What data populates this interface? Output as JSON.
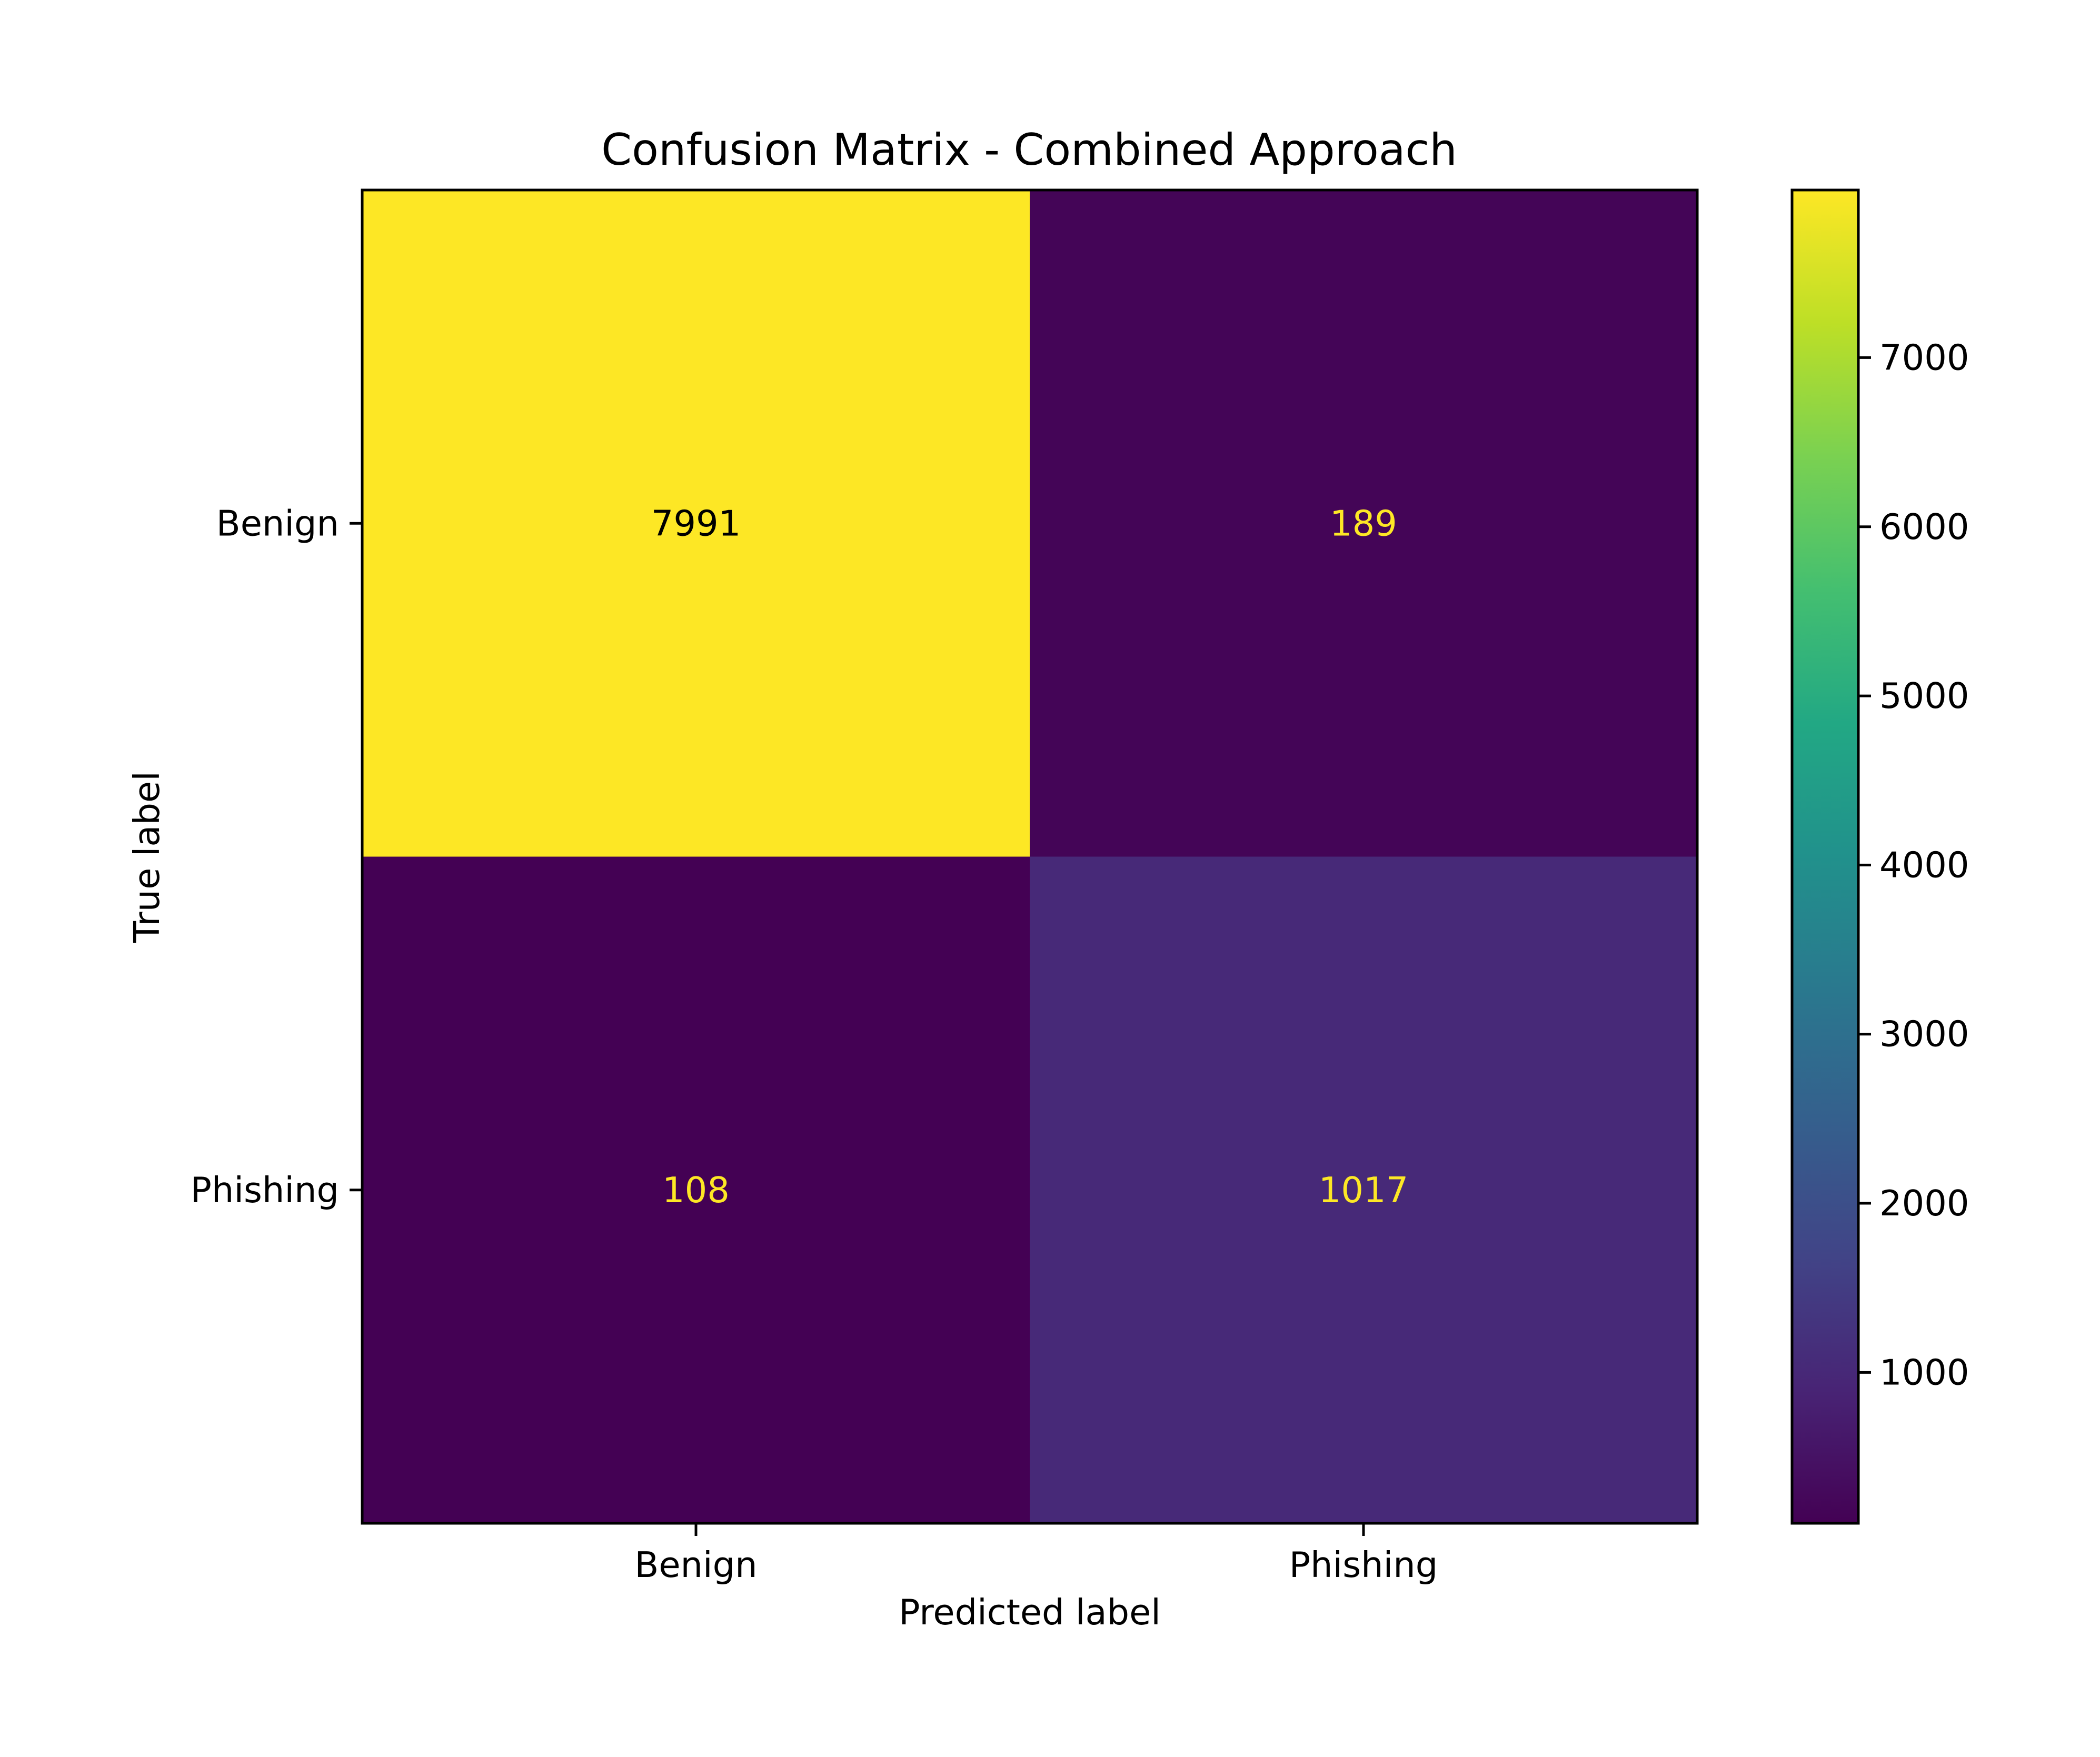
{
  "chart_data": {
    "type": "heatmap",
    "title": "Confusion Matrix - Combined Approach",
    "xlabel": "Predicted label",
    "ylabel": "True label",
    "x_categories": [
      "Benign",
      "Phishing"
    ],
    "y_categories": [
      "Benign",
      "Phishing"
    ],
    "values": [
      [
        7991,
        189
      ],
      [
        108,
        1017
      ]
    ],
    "colormap": "viridis",
    "colorbar": {
      "ticks": [
        1000,
        2000,
        3000,
        4000,
        5000,
        6000,
        7000
      ],
      "range": [
        108,
        7991
      ]
    },
    "text_colors": {
      "light_cells": "#000000",
      "dark_cells": "#fde725"
    },
    "grid": false
  }
}
